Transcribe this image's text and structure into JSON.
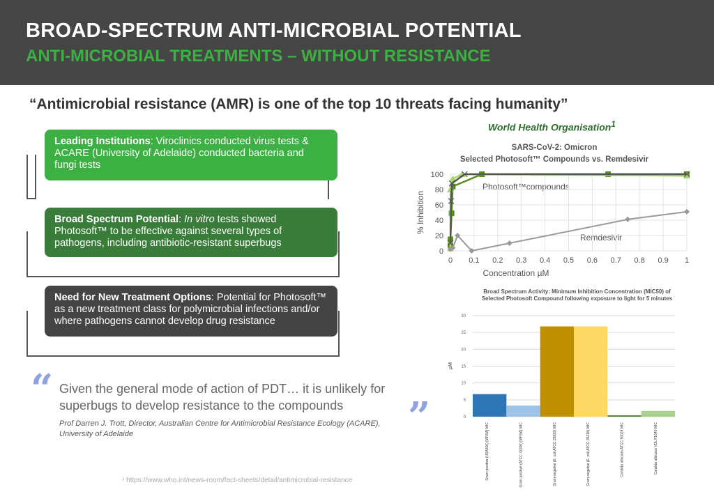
{
  "header": {
    "title": "BROAD-SPECTRUM ANTI-MICROBIAL POTENTIAL",
    "subtitle": "ANTI-MICROBIAL TREATMENTS – WITHOUT RESISTANCE"
  },
  "quote": {
    "text": "“Antimicrobial resistance (AMR) is one of the top 10 threats facing humanity”",
    "source": "World Health Organisation",
    "source_sup": "1"
  },
  "boxes": [
    {
      "bold": "Leading Institutions",
      "text": ": Viroclinics conducted virus tests & ACARE (University of Adelaide) conducted bacteria and fungi tests",
      "color": "#3cb043"
    },
    {
      "bold": "Broad Spectrum Potential",
      "italic": "In vitro",
      "text1": ": ",
      "text2": " tests showed Photosoft™ to be effective against several types of pathogens, including antibiotic-resistant superbugs",
      "color": "#3a7d3a"
    },
    {
      "bold": "Need for New Treatment Options",
      "text": ": Potential for Photosoft™ as a new treatment class for polymicrobial infections and/or where pathogens cannot develop drug resistance",
      "color": "#444444"
    }
  ],
  "pull_quote": {
    "text": "Given the general mode of action of PDT… it is unlikely for superbugs to develop resistance to the compounds",
    "attribution": "Prof Darren J. Trott, Director, Australian Centre for Antimicrobial Resistance Ecology (ACARE),  University of Adelaide"
  },
  "footnote": "¹ https://www.who.int/news-room/fact-sheets/detail/antimicrobial-resistance",
  "chart_data": [
    {
      "type": "line",
      "title": "SARS-CoV-2: Omicron",
      "subtitle": "Selected Photosoft™ Compounds vs. Remdesivir",
      "xlabel": "Concentration µM",
      "ylabel": "% Inhibition",
      "xlim": [
        0,
        1
      ],
      "ylim": [
        0,
        100
      ],
      "xticks": [
        "0",
        "0.1",
        "0.2",
        "0.3",
        "0.4",
        "0.5",
        "0.6",
        "0.7",
        "0.8",
        "0.9",
        "1"
      ],
      "yticks": [
        "0",
        "20",
        "40",
        "60",
        "80",
        "100"
      ],
      "grid": true,
      "annotations": [
        "Photosoft™compounds",
        "Remdesivir"
      ],
      "series": [
        {
          "marker": "square",
          "color": "#5a8f1e",
          "x": [
            0,
            0,
            0.005,
            0.01,
            0.133,
            0.667,
            1
          ],
          "y": [
            7,
            15,
            49,
            84,
            100,
            100,
            100
          ]
        },
        {
          "marker": "triangle",
          "color": "#a9d46b",
          "x": [
            0,
            0,
            0.01,
            0.05,
            1
          ],
          "y": [
            3,
            80,
            94,
            100,
            98
          ]
        },
        {
          "marker": "x",
          "color": "#555555",
          "x": [
            0,
            0.003,
            0.006,
            0.06,
            1
          ],
          "y": [
            10,
            65,
            88,
            100,
            100
          ]
        },
        {
          "marker": "diamond",
          "color": "#999999",
          "x": [
            0,
            0.01,
            0.03,
            0.09,
            0.25,
            0.75,
            1
          ],
          "y": [
            2,
            4,
            20,
            0,
            10,
            41,
            51
          ]
        }
      ]
    },
    {
      "type": "bar",
      "title": "Broad Spectrum Activity: Minimum Inhibition Concentration (MIC50) of Selected Photosoft Compound following exposure to light for 5 minutes",
      "ylabel": "µM",
      "ylim": [
        0,
        30
      ],
      "yticks": [
        "0",
        "5",
        "10",
        "15",
        "20",
        "25",
        "30"
      ],
      "grid": true,
      "categories": [
        "Gram-positive (USA300) [MRSA] MIC",
        "Gram-positive (ATCC 43300) [MRSA] MIC",
        "Gram-negative (E. coli ATCC 25922) MIC",
        "Gram-negative (E. coli ATCC 35218) MIC",
        "Candida albicans ATCC 90028 MIC",
        "Candida albicans VDL F1640 MIC"
      ],
      "values": [
        6.7,
        3.3,
        26.8,
        26.8,
        0.4,
        1.7
      ],
      "colors": [
        "#2e75b6",
        "#9dc3e6",
        "#bf9000",
        "#ffd966",
        "#548235",
        "#a9d18e"
      ]
    }
  ]
}
